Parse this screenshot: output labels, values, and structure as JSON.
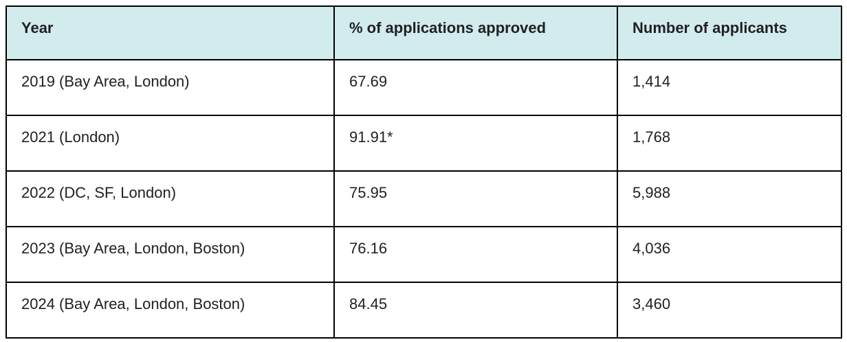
{
  "table": {
    "header": [
      "Year",
      "% of applications approved",
      "Number of applicants"
    ],
    "rows": [
      {
        "year": "2019 (Bay Area, London)",
        "approved": "67.69",
        "applicants": "1,414"
      },
      {
        "year": "2021 (London)",
        "approved": "91.91*",
        "applicants": "1,768"
      },
      {
        "year": "2022 (DC, SF, London)",
        "approved": "75.95",
        "applicants": "5,988"
      },
      {
        "year": "2023 (Bay Area, London, Boston)",
        "approved": "76.16",
        "applicants": "4,036"
      },
      {
        "year": "2024 (Bay Area, London, Boston)",
        "approved": "84.45",
        "applicants": "3,460"
      }
    ],
    "colors": {
      "header_bg": "#d2ebed",
      "border": "#000000",
      "text": "#202124",
      "page_bg": "#ffffff"
    }
  },
  "chart_data": {
    "type": "table",
    "columns": [
      "Year",
      "% of applications approved",
      "Number of applicants"
    ],
    "rows": [
      [
        "2019 (Bay Area, London)",
        67.69,
        1414
      ],
      [
        "2021 (London)",
        "91.91*",
        1768
      ],
      [
        "2022 (DC, SF, London)",
        75.95,
        5988
      ],
      [
        "2023 (Bay Area, London, Boston)",
        76.16,
        4036
      ],
      [
        "2024 (Bay Area, London, Boston)",
        84.45,
        3460
      ]
    ],
    "notes": "Asterisk on 91.91 denotes a footnote marker visible in the cell"
  }
}
